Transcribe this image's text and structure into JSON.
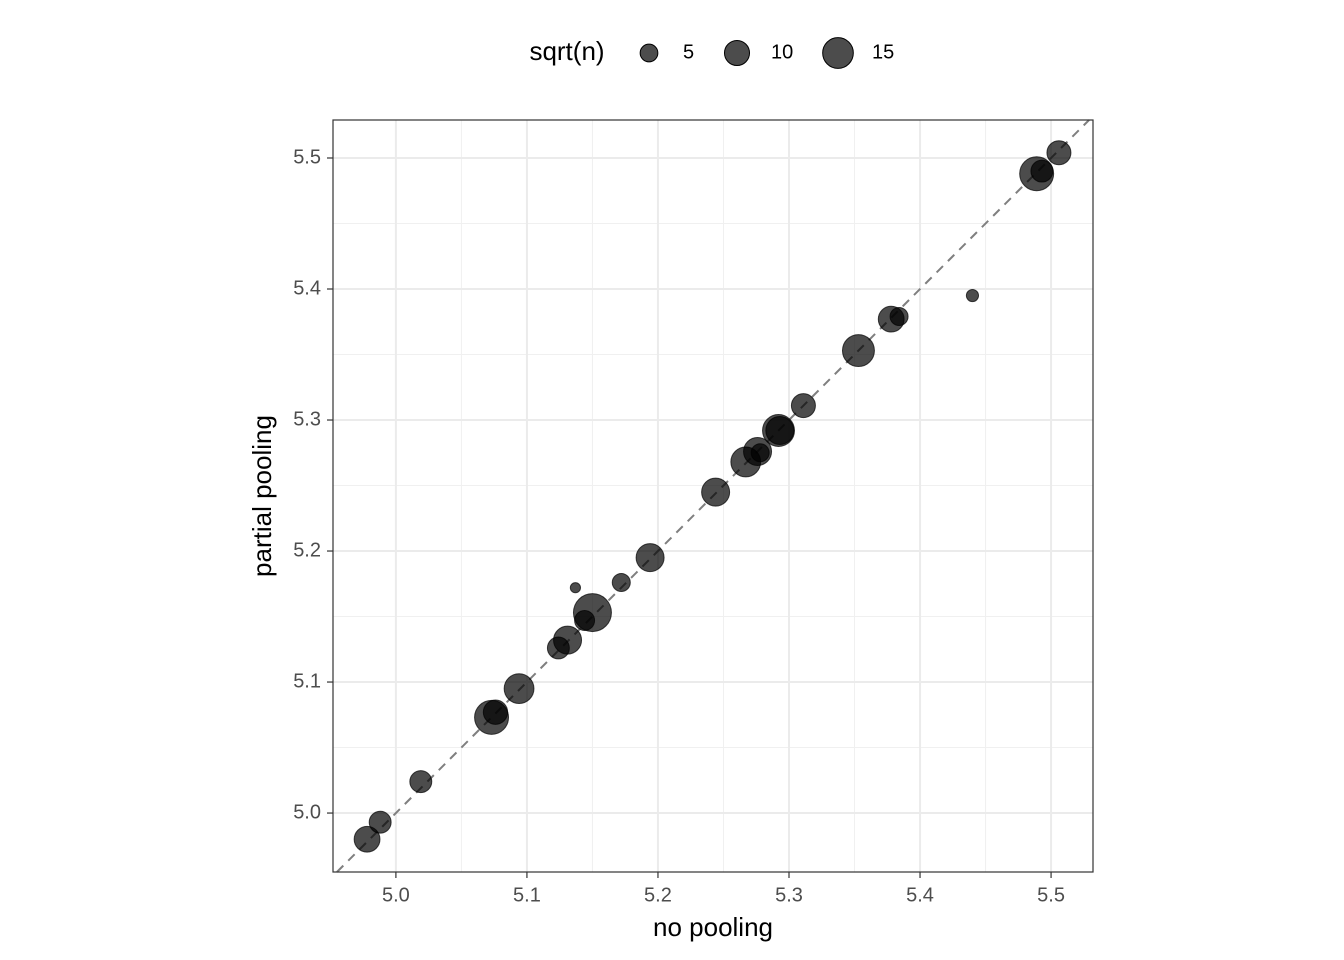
{
  "chart_data": {
    "type": "scatter",
    "x_label": "no pooling",
    "y_label": "partial pooling",
    "xlim": [
      4.952,
      5.532
    ],
    "ylim": [
      4.955,
      5.529
    ],
    "xticks": [
      {
        "value": 5.0,
        "label": "5.0"
      },
      5.1,
      5.2,
      5.3,
      5.4,
      5.5
    ],
    "yticks": [
      {
        "value": 5.0,
        "label": "5.0"
      },
      5.1,
      5.2,
      5.3,
      5.4,
      5.5
    ],
    "xminor": [
      5.05,
      5.15,
      5.25,
      5.35,
      5.45
    ],
    "yminor": [
      5.05,
      5.15,
      5.25,
      5.35,
      5.45
    ],
    "grid": true,
    "abline": {
      "slope": 1,
      "intercept": 0
    },
    "color": "#000000",
    "alpha": 0.7,
    "size_legend": {
      "title": "sqrt(n)",
      "values": [
        5,
        10,
        15
      ]
    },
    "x": [
      4.978,
      4.988,
      5.019,
      5.073,
      5.076,
      5.094,
      5.124,
      5.131,
      5.144,
      5.15,
      5.137,
      5.172,
      5.194,
      5.244,
      5.267,
      5.276,
      5.278,
      5.292,
      5.293,
      5.311,
      5.353,
      5.378,
      5.384,
      5.44,
      5.489,
      5.493,
      5.506
    ],
    "y": [
      4.98,
      4.993,
      5.024,
      5.073,
      5.077,
      5.095,
      5.126,
      5.132,
      5.147,
      5.153,
      5.172,
      5.176,
      5.195,
      5.245,
      5.268,
      5.276,
      5.275,
      5.292,
      5.292,
      5.311,
      5.353,
      5.377,
      5.379,
      5.395,
      5.488,
      5.49,
      5.504
    ],
    "size": [
      9,
      6.5,
      6.5,
      15.6,
      8,
      12,
      6.5,
      10.6,
      5.4,
      19.5,
      1.4,
      4.4,
      10.6,
      10.6,
      12,
      10.6,
      4.4,
      13.8,
      10.6,
      7.8,
      13.8,
      9,
      4.4,
      2,
      15.6,
      6.5,
      7.8
    ]
  }
}
